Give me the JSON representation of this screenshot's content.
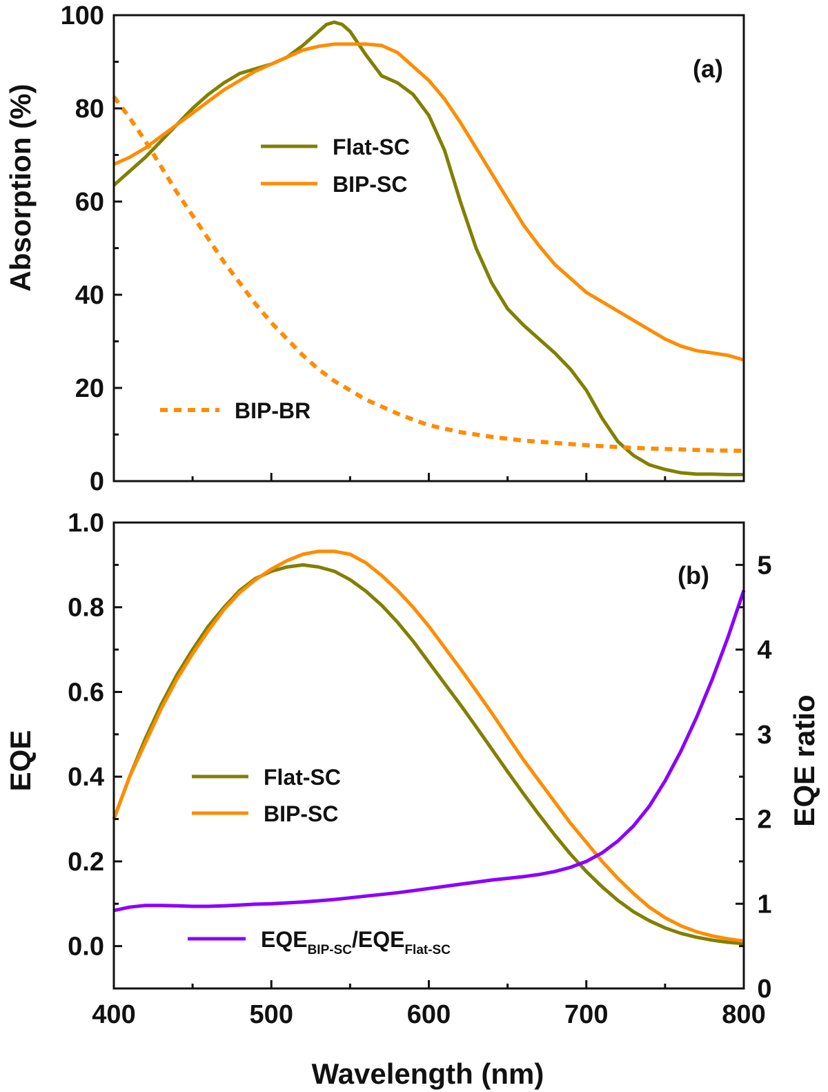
{
  "chart_data": [
    {
      "type": "line",
      "panel_label": "(a)",
      "ylabel": "Absorption (%)",
      "xlabel": "",
      "xlim": [
        400,
        800
      ],
      "ylim": [
        0,
        100
      ],
      "x_ticks": [
        400,
        500,
        600,
        700,
        800
      ],
      "y_ticks": [
        0,
        20,
        40,
        60,
        80,
        100
      ],
      "y_tick_labels": [
        "0",
        "20",
        "40",
        "60",
        "80",
        "100"
      ],
      "series": [
        {
          "name": "Flat-SC",
          "legend": "Flat-SC",
          "color": "#808000",
          "dash": "solid",
          "x": [
            400,
            410,
            420,
            430,
            440,
            450,
            460,
            470,
            480,
            490,
            500,
            510,
            520,
            530,
            535,
            540,
            545,
            550,
            560,
            570,
            580,
            590,
            600,
            610,
            620,
            630,
            640,
            650,
            660,
            670,
            680,
            690,
            700,
            710,
            720,
            730,
            740,
            750,
            760,
            770,
            780,
            790,
            800
          ],
          "y": [
            63.5,
            66.5,
            69.5,
            73,
            76.5,
            80,
            83,
            85.5,
            87.5,
            88.5,
            89.5,
            91,
            93.5,
            96.5,
            98,
            98.5,
            98,
            96.5,
            91.5,
            87,
            85.5,
            83,
            78.5,
            71,
            60,
            50,
            42.5,
            37,
            33.5,
            30.5,
            27.5,
            24,
            19.5,
            13.5,
            8.5,
            5.5,
            3.5,
            2.5,
            1.8,
            1.5,
            1.5,
            1.4,
            1.4
          ]
        },
        {
          "name": "BIP-SC",
          "legend": "BIP-SC",
          "color": "#ff8c00",
          "dash": "solid",
          "x": [
            400,
            410,
            420,
            430,
            440,
            450,
            460,
            470,
            480,
            490,
            500,
            510,
            520,
            530,
            540,
            550,
            560,
            570,
            580,
            590,
            600,
            610,
            620,
            630,
            640,
            650,
            660,
            670,
            680,
            690,
            700,
            710,
            720,
            730,
            740,
            750,
            760,
            770,
            780,
            790,
            800
          ],
          "y": [
            68,
            69.5,
            71.5,
            74,
            76.5,
            79,
            81.5,
            84,
            86,
            88,
            89.5,
            91,
            92.5,
            93.3,
            93.8,
            93.8,
            93.8,
            93.5,
            92,
            89,
            86,
            82,
            77,
            71.5,
            66,
            60.5,
            55,
            50.5,
            46.5,
            43.5,
            40.5,
            38.5,
            36.5,
            34.5,
            32.5,
            30.5,
            29,
            28,
            27.5,
            27,
            26
          ]
        },
        {
          "name": "BIP-BR",
          "legend": "BIP-BR",
          "color": "#ff8c00",
          "dash": "dotted",
          "x": [
            400,
            410,
            420,
            430,
            440,
            450,
            460,
            470,
            480,
            490,
            500,
            510,
            520,
            530,
            540,
            550,
            560,
            570,
            580,
            590,
            600,
            620,
            640,
            660,
            680,
            700,
            720,
            740,
            760,
            780,
            800
          ],
          "y": [
            82.5,
            78,
            73,
            67.5,
            62,
            57,
            52,
            47,
            42.5,
            38,
            34,
            30.5,
            27,
            24,
            21.5,
            19.5,
            17.5,
            16,
            14.5,
            13.2,
            12,
            10.5,
            9.5,
            8.7,
            8.2,
            7.7,
            7.3,
            7,
            6.8,
            6.6,
            6.5
          ]
        }
      ]
    },
    {
      "type": "line",
      "panel_label": "(b)",
      "ylabel": "EQE",
      "ylabel_right": "EQE ratio",
      "xlabel": "Wavelength (nm)",
      "xlim": [
        400,
        800
      ],
      "ylim": [
        -0.1,
        1.0
      ],
      "ylim_right": [
        0,
        5.5
      ],
      "x_ticks": [
        400,
        500,
        600,
        700,
        800
      ],
      "x_tick_labels": [
        "400",
        "500",
        "600",
        "700",
        "800"
      ],
      "y_ticks": [
        0.0,
        0.2,
        0.4,
        0.6,
        0.8,
        1.0
      ],
      "y_tick_labels": [
        "0.0",
        "0.2",
        "0.4",
        "0.6",
        "0.8",
        "1.0"
      ],
      "y_ticks_right": [
        0,
        1,
        2,
        3,
        4,
        5
      ],
      "y_tick_labels_right": [
        "0",
        "1",
        "2",
        "3",
        "4",
        "5"
      ],
      "series": [
        {
          "name": "Flat-SC",
          "legend": "Flat-SC",
          "color": "#808000",
          "axis": "left",
          "x": [
            400,
            410,
            420,
            430,
            440,
            450,
            460,
            470,
            480,
            490,
            500,
            510,
            520,
            530,
            540,
            550,
            560,
            570,
            580,
            590,
            600,
            610,
            620,
            630,
            640,
            650,
            660,
            670,
            680,
            690,
            700,
            710,
            720,
            730,
            740,
            750,
            760,
            770,
            780,
            790,
            800
          ],
          "y": [
            0.3,
            0.4,
            0.49,
            0.57,
            0.64,
            0.7,
            0.755,
            0.8,
            0.84,
            0.868,
            0.885,
            0.895,
            0.9,
            0.895,
            0.885,
            0.865,
            0.838,
            0.805,
            0.765,
            0.72,
            0.67,
            0.62,
            0.57,
            0.518,
            0.465,
            0.412,
            0.36,
            0.31,
            0.262,
            0.217,
            0.176,
            0.14,
            0.108,
            0.081,
            0.06,
            0.043,
            0.03,
            0.021,
            0.014,
            0.009,
            0.006
          ]
        },
        {
          "name": "BIP-SC",
          "legend": "BIP-SC",
          "color": "#ff8c00",
          "axis": "left",
          "x": [
            400,
            410,
            420,
            430,
            440,
            450,
            460,
            470,
            480,
            490,
            500,
            510,
            520,
            530,
            540,
            550,
            560,
            570,
            580,
            590,
            600,
            610,
            620,
            630,
            640,
            650,
            660,
            670,
            680,
            690,
            700,
            710,
            720,
            730,
            740,
            750,
            760,
            770,
            780,
            790,
            800
          ],
          "y": [
            0.3,
            0.4,
            0.48,
            0.56,
            0.63,
            0.69,
            0.745,
            0.795,
            0.835,
            0.865,
            0.89,
            0.91,
            0.925,
            0.932,
            0.932,
            0.925,
            0.905,
            0.875,
            0.84,
            0.8,
            0.755,
            0.705,
            0.655,
            0.603,
            0.55,
            0.495,
            0.44,
            0.39,
            0.34,
            0.29,
            0.245,
            0.2,
            0.16,
            0.124,
            0.092,
            0.067,
            0.048,
            0.034,
            0.024,
            0.017,
            0.012
          ]
        },
        {
          "name": "EQE ratio",
          "legend": "EQE_BIP-SC/EQE_Flat-SC",
          "color": "#8b00ff",
          "axis": "right",
          "x": [
            400,
            410,
            420,
            430,
            440,
            450,
            460,
            470,
            480,
            490,
            500,
            510,
            520,
            530,
            540,
            550,
            560,
            570,
            580,
            590,
            600,
            610,
            620,
            630,
            640,
            650,
            660,
            670,
            680,
            690,
            700,
            710,
            720,
            730,
            740,
            750,
            760,
            770,
            780,
            790,
            800
          ],
          "y": [
            0.92,
            0.96,
            0.98,
            0.98,
            0.975,
            0.97,
            0.97,
            0.975,
            0.985,
            0.995,
            1.0,
            1.01,
            1.02,
            1.035,
            1.05,
            1.07,
            1.09,
            1.11,
            1.13,
            1.155,
            1.18,
            1.205,
            1.23,
            1.255,
            1.28,
            1.3,
            1.32,
            1.345,
            1.38,
            1.43,
            1.5,
            1.6,
            1.74,
            1.92,
            2.15,
            2.45,
            2.8,
            3.2,
            3.65,
            4.15,
            4.7
          ]
        }
      ],
      "legend_ratio": {
        "main": "EQE",
        "sub1": "BIP-SC",
        "mid": "/EQE",
        "sub2": "Flat-SC"
      }
    }
  ]
}
